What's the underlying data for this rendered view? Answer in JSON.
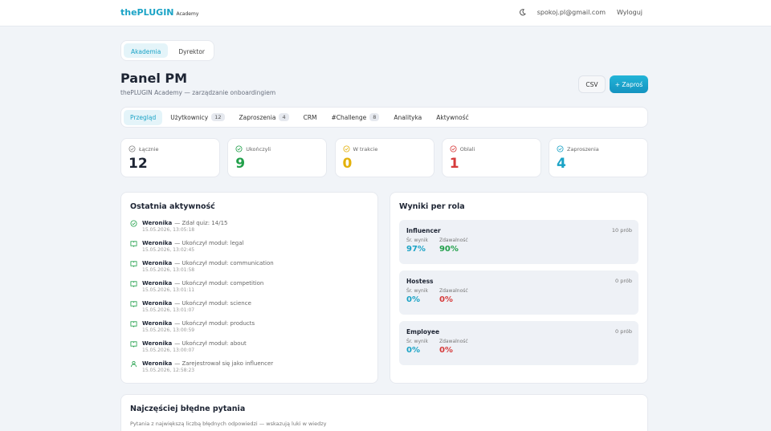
{
  "header": {
    "brand": "thePLUGIN",
    "brand_sub": "Academy",
    "email": "spokoj.pl@gmail.com",
    "logout": "Wyloguj"
  },
  "role_tabs": [
    "Akademia",
    "Dyrektor"
  ],
  "page": {
    "title": "Panel PM",
    "subtitle": "thePLUGIN Academy — zarządzanie onboardingiem",
    "csv": "CSV",
    "invite": "+ Zaproś"
  },
  "tabs": [
    {
      "label": "Przegląd"
    },
    {
      "label": "Użytkownicy",
      "count": 12
    },
    {
      "label": "Zaproszenia",
      "count": 4
    },
    {
      "label": "CRM"
    },
    {
      "label": "#Challenge",
      "count": 8
    },
    {
      "label": "Analityka"
    },
    {
      "label": "Aktywność"
    }
  ],
  "stats": [
    {
      "label": "Łącznie",
      "value": 12
    },
    {
      "label": "Ukończyli",
      "value": 9
    },
    {
      "label": "W trakcie",
      "value": 0
    },
    {
      "label": "Oblali",
      "value": 1
    },
    {
      "label": "Zaproszenia",
      "value": 4
    }
  ],
  "activity": {
    "title": "Ostatnia aktywność",
    "items": [
      {
        "user": "Weronika",
        "action": "— Zdał quiz: 14/15",
        "time": "15.05.2026, 13:05:18"
      },
      {
        "user": "Weronika",
        "action": "— Ukończył moduł: legal",
        "time": "15.05.2026, 13:02:45"
      },
      {
        "user": "Weronika",
        "action": "— Ukończył moduł: communication",
        "time": "15.05.2026, 13:01:58"
      },
      {
        "user": "Weronika",
        "action": "— Ukończył moduł: competition",
        "time": "15.05.2026, 13:01:11"
      },
      {
        "user": "Weronika",
        "action": "— Ukończył moduł: science",
        "time": "15.05.2026, 13:01:07"
      },
      {
        "user": "Weronika",
        "action": "— Ukończył moduł: products",
        "time": "15.05.2026, 13:00:59"
      },
      {
        "user": "Weronika",
        "action": "— Ukończył moduł: about",
        "time": "15.05.2026, 13:00:07"
      },
      {
        "user": "Weronika",
        "action": "— Zarejestrował się jako influencer",
        "time": "15.05.2026, 12:58:23"
      }
    ]
  },
  "roles": {
    "title": "Wyniki per rola",
    "items": [
      {
        "name": "Influencer",
        "attempts": "10 prób",
        "score_label": "Śr. wynik",
        "score": "97%",
        "pass_label": "Zdawalność",
        "pass": "90%"
      },
      {
        "name": "Hostess",
        "attempts": "0 prób",
        "score_label": "Śr. wynik",
        "score": "0%",
        "pass_label": "Zdawalność",
        "pass": "0%"
      },
      {
        "name": "Employee",
        "attempts": "0 prób",
        "score_label": "Śr. wynik",
        "score": "0%",
        "pass_label": "Zdawalność",
        "pass": "0%"
      }
    ]
  },
  "wrong": {
    "title": "Najczęściej błędne pytania",
    "subtitle": "Pytania z największą liczbą błędnych odpowiedzi — wskazują luki w wiedzy"
  }
}
